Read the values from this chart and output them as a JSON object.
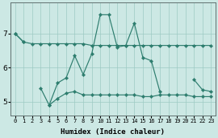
{
  "xlabel": "Humidex (Indice chaleur)",
  "x": [
    0,
    1,
    2,
    3,
    4,
    5,
    6,
    7,
    8,
    9,
    10,
    11,
    12,
    13,
    14,
    15,
    16,
    17,
    18,
    19,
    20,
    21,
    22,
    23
  ],
  "line_top": [
    7.0,
    6.75,
    6.7,
    6.7,
    6.7,
    6.7,
    6.7,
    6.7,
    6.7,
    6.65,
    6.65,
    6.65,
    6.65,
    6.65,
    6.65,
    6.65,
    6.65,
    6.65,
    6.65,
    6.65,
    6.65,
    6.65,
    6.65,
    6.65
  ],
  "line_main": [
    7.0,
    6.75,
    null,
    null,
    4.9,
    5.55,
    5.7,
    6.35,
    5.8,
    6.4,
    7.55,
    7.55,
    6.6,
    6.65,
    7.3,
    6.3,
    6.2,
    5.3,
    null,
    null,
    null,
    5.65,
    5.35,
    5.3
  ],
  "line_bot": [
    null,
    null,
    null,
    5.4,
    4.9,
    5.1,
    5.25,
    5.3,
    5.2,
    5.2,
    5.2,
    5.2,
    5.2,
    5.2,
    5.2,
    5.15,
    5.15,
    5.2,
    5.2,
    5.2,
    5.2,
    5.15,
    5.15,
    5.15
  ],
  "line_color": "#2d7d6e",
  "bg_color": "#cce8e4",
  "grid_color": "#9dcac4",
  "yticks": [
    5,
    6,
    7
  ],
  "ylim": [
    4.6,
    7.9
  ],
  "xlim": [
    -0.5,
    23.5
  ],
  "figwidth": 2.7,
  "figheight": 1.72
}
